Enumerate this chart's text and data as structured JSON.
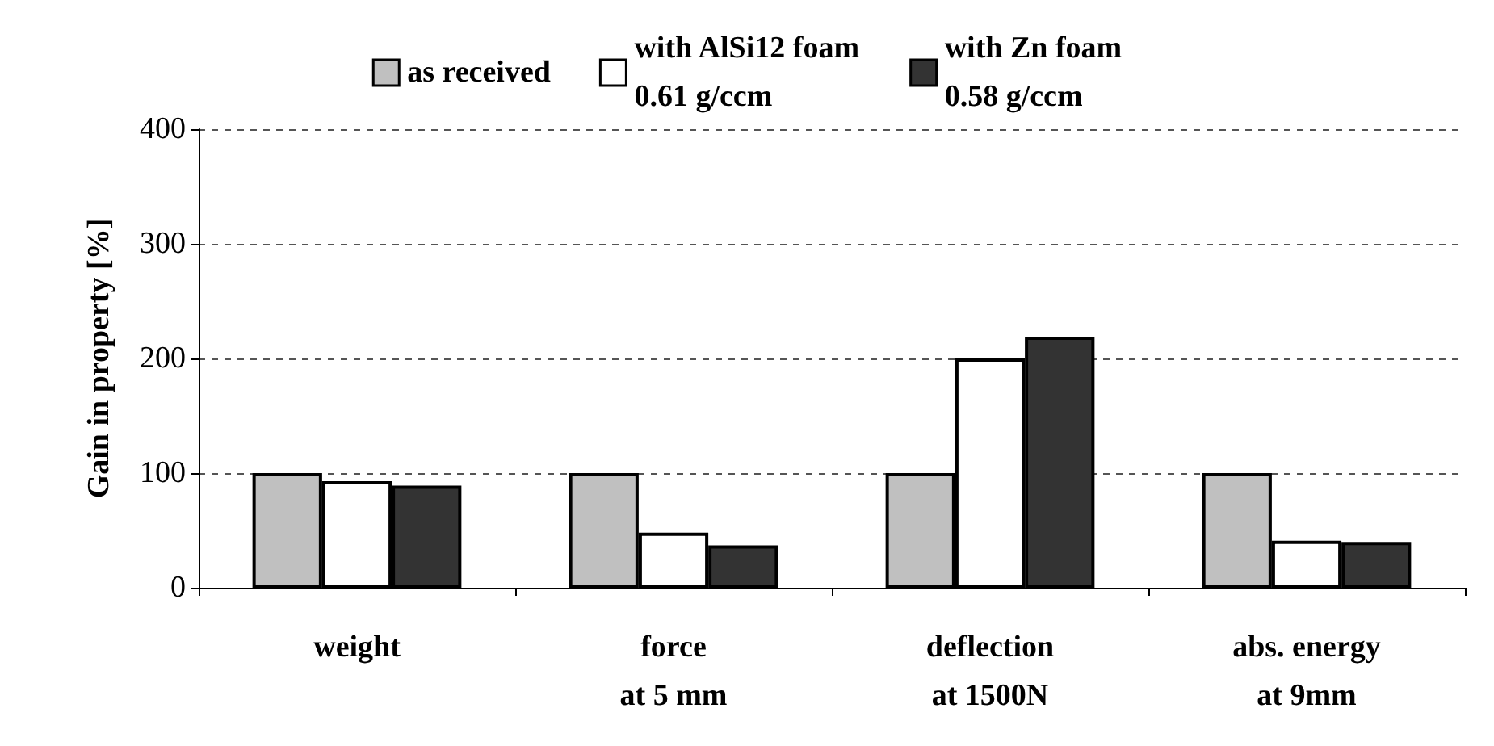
{
  "chart_data": {
    "type": "bar",
    "ylabel": "Gain in property [%]",
    "categories": [
      "weight",
      "force\nat 5 mm",
      "deflection\nat 1500N",
      "abs. energy\nat 9mm"
    ],
    "series": [
      {
        "name": "as received",
        "color": "#c0c0c0",
        "values": [
          100,
          100,
          100,
          100
        ]
      },
      {
        "name": "with AlSi12 foam\n0.61 g/ccm",
        "color": "#ffffff",
        "values": [
          93,
          48,
          200,
          41
        ]
      },
      {
        "name": "with Zn foam\n0.58 g/ccm",
        "color": "#333333",
        "values": [
          89,
          37,
          219,
          40
        ]
      }
    ],
    "ylim": [
      0,
      400
    ],
    "yticks": [
      0,
      100,
      200,
      300,
      400
    ],
    "grid": "y",
    "legend": "top"
  }
}
